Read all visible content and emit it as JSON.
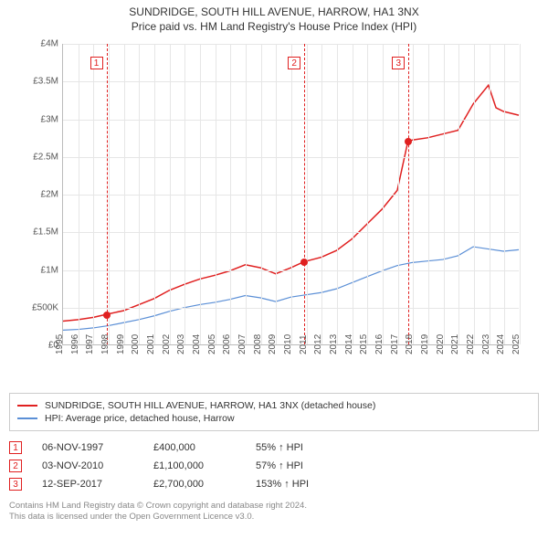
{
  "titles": {
    "line1": "SUNDRIDGE, SOUTH HILL AVENUE, HARROW, HA1 3NX",
    "line2": "Price paid vs. HM Land Registry's House Price Index (HPI)"
  },
  "chart": {
    "type": "line",
    "background_color": "#ffffff",
    "grid_color": "#e6e6e6",
    "axis_color": "#bbbbbb",
    "label_color": "#555555",
    "label_fontsize": 10,
    "x": {
      "min": 1995,
      "max": 2025,
      "ticks": [
        1995,
        1996,
        1997,
        1998,
        1999,
        2000,
        2001,
        2002,
        2003,
        2004,
        2005,
        2006,
        2007,
        2008,
        2009,
        2010,
        2011,
        2012,
        2013,
        2014,
        2015,
        2016,
        2017,
        2018,
        2019,
        2020,
        2021,
        2022,
        2023,
        2024,
        2025
      ]
    },
    "y": {
      "min": 0,
      "max": 4000000,
      "ticks": [
        0,
        500000,
        1000000,
        1500000,
        2000000,
        2500000,
        3000000,
        3500000,
        4000000
      ],
      "labels": [
        "£0",
        "£500K",
        "£1M",
        "£1.5M",
        "£2M",
        "£2.5M",
        "£3M",
        "£3.5M",
        "£4M"
      ]
    },
    "series": [
      {
        "name": "SUNDRIDGE, SOUTH HILL AVENUE, HARROW, HA1 3NX (detached house)",
        "color": "#e02020",
        "line_width": 1.5,
        "points": [
          [
            1995,
            310000
          ],
          [
            1996,
            330000
          ],
          [
            1997,
            360000
          ],
          [
            1997.85,
            400000
          ],
          [
            1999,
            450000
          ],
          [
            2000,
            530000
          ],
          [
            2001,
            610000
          ],
          [
            2002,
            720000
          ],
          [
            2003,
            800000
          ],
          [
            2004,
            870000
          ],
          [
            2005,
            920000
          ],
          [
            2006,
            980000
          ],
          [
            2007,
            1060000
          ],
          [
            2008,
            1020000
          ],
          [
            2009,
            940000
          ],
          [
            2010,
            1020000
          ],
          [
            2010.85,
            1100000
          ],
          [
            2012,
            1160000
          ],
          [
            2013,
            1250000
          ],
          [
            2014,
            1400000
          ],
          [
            2015,
            1600000
          ],
          [
            2016,
            1800000
          ],
          [
            2017,
            2050000
          ],
          [
            2017.7,
            2700000
          ],
          [
            2018,
            2720000
          ],
          [
            2019,
            2750000
          ],
          [
            2020,
            2800000
          ],
          [
            2021,
            2850000
          ],
          [
            2022,
            3200000
          ],
          [
            2023,
            3450000
          ],
          [
            2023.5,
            3150000
          ],
          [
            2024,
            3100000
          ],
          [
            2025,
            3050000
          ]
        ]
      },
      {
        "name": "HPI: Average price, detached house, Harrow",
        "color": "#5b8fd6",
        "line_width": 1.2,
        "points": [
          [
            1995,
            190000
          ],
          [
            1996,
            200000
          ],
          [
            1997,
            220000
          ],
          [
            1998,
            250000
          ],
          [
            1999,
            290000
          ],
          [
            2000,
            330000
          ],
          [
            2001,
            380000
          ],
          [
            2002,
            440000
          ],
          [
            2003,
            490000
          ],
          [
            2004,
            530000
          ],
          [
            2005,
            560000
          ],
          [
            2006,
            600000
          ],
          [
            2007,
            650000
          ],
          [
            2008,
            620000
          ],
          [
            2009,
            570000
          ],
          [
            2010,
            630000
          ],
          [
            2011,
            660000
          ],
          [
            2012,
            690000
          ],
          [
            2013,
            740000
          ],
          [
            2014,
            820000
          ],
          [
            2015,
            900000
          ],
          [
            2016,
            980000
          ],
          [
            2017,
            1050000
          ],
          [
            2018,
            1090000
          ],
          [
            2019,
            1110000
          ],
          [
            2020,
            1130000
          ],
          [
            2021,
            1180000
          ],
          [
            2022,
            1300000
          ],
          [
            2023,
            1270000
          ],
          [
            2024,
            1240000
          ],
          [
            2025,
            1260000
          ]
        ]
      }
    ],
    "markers": [
      {
        "index": 1,
        "x": 1997.85,
        "y": 400000
      },
      {
        "index": 2,
        "x": 2010.85,
        "y": 1100000
      },
      {
        "index": 3,
        "x": 2017.7,
        "y": 2700000
      }
    ],
    "marker_color": "#e02020"
  },
  "legend": {
    "items": [
      {
        "color": "#e02020",
        "label": "SUNDRIDGE, SOUTH HILL AVENUE, HARROW, HA1 3NX (detached house)"
      },
      {
        "color": "#5b8fd6",
        "label": "HPI: Average price, detached house, Harrow"
      }
    ]
  },
  "sales": [
    {
      "n": "1",
      "date": "06-NOV-1997",
      "price": "£400,000",
      "pct": "55% ↑ HPI"
    },
    {
      "n": "2",
      "date": "03-NOV-2010",
      "price": "£1,100,000",
      "pct": "57% ↑ HPI"
    },
    {
      "n": "3",
      "date": "12-SEP-2017",
      "price": "£2,700,000",
      "pct": "153% ↑ HPI"
    }
  ],
  "footer": {
    "line1": "Contains HM Land Registry data © Crown copyright and database right 2024.",
    "line2": "This data is licensed under the Open Government Licence v3.0."
  }
}
